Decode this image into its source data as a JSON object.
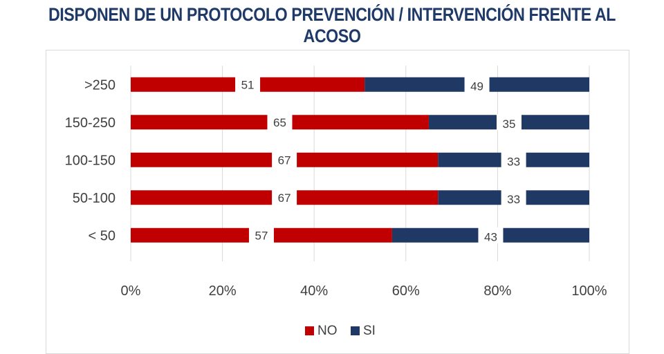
{
  "title": "DISPONEN DE UN PROTOCOLO PREVENCIÓN / INTERVENCIÓN FRENTE AL ACOSO",
  "colors": {
    "no": "#c00000",
    "si": "#1f3864",
    "title": "#1f3a68",
    "text": "#404040",
    "grid": "#d9d9d9",
    "bg": "#ffffff"
  },
  "chart_data": {
    "type": "bar",
    "orientation": "horizontal",
    "stacked": "percent",
    "categories": [
      ">250",
      "150-250",
      "100-150",
      "50-100",
      "< 50"
    ],
    "series": [
      {
        "name": "NO",
        "values": [
          51,
          65,
          67,
          67,
          57
        ],
        "color": "#c00000"
      },
      {
        "name": "SI",
        "values": [
          49,
          35,
          33,
          33,
          43
        ],
        "color": "#1f3864"
      }
    ],
    "xlim": [
      0,
      100
    ],
    "xticks": [
      "0%",
      "20%",
      "40%",
      "60%",
      "80%",
      "100%"
    ],
    "grid": true,
    "legend": "bottom-center",
    "data_labels": true
  }
}
